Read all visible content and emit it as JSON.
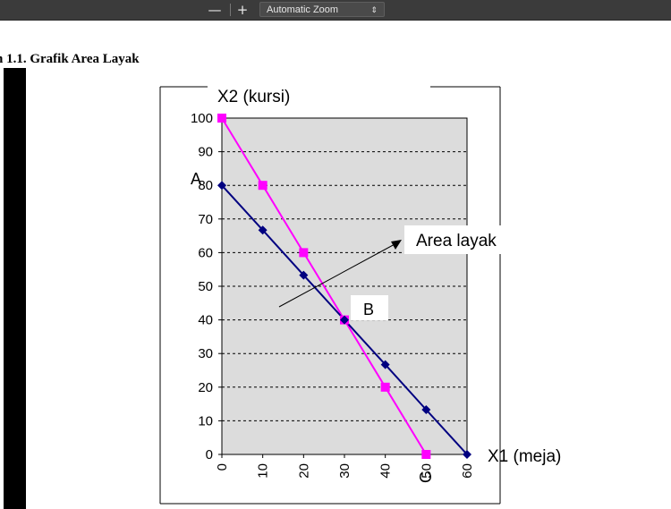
{
  "toolbar": {
    "zoom_out_label": "—",
    "zoom_in_label": "+",
    "zoom_select_value": "Automatic Zoom",
    "zoom_caret": "⇕"
  },
  "document": {
    "heading": "n 1.1. Grafik Area Layak"
  },
  "chart_data": {
    "type": "line",
    "ylabel": "X2 (kursi)",
    "xlabel": "X1 (meja)",
    "xlim": [
      0,
      60
    ],
    "ylim": [
      0,
      100
    ],
    "x_ticks": [
      "0",
      "10",
      "20",
      "30",
      "40",
      "50",
      "60"
    ],
    "y_ticks": [
      "0",
      "10",
      "20",
      "30",
      "40",
      "50",
      "60",
      "70",
      "80",
      "90",
      "100"
    ],
    "grid": "horizontal dashed",
    "plot_background": "#dcdcdc",
    "series": [
      {
        "color": "#ff00ff",
        "marker": "square",
        "points": [
          [
            0,
            100
          ],
          [
            10,
            80
          ],
          [
            20,
            60
          ],
          [
            30,
            40
          ],
          [
            40,
            20
          ],
          [
            50,
            0
          ]
        ]
      },
      {
        "color": "#000080",
        "marker": "diamond",
        "points": [
          [
            0,
            80
          ],
          [
            10,
            66.7
          ],
          [
            20,
            53.3
          ],
          [
            30,
            40
          ],
          [
            40,
            26.7
          ],
          [
            50,
            13.3
          ],
          [
            60,
            0
          ]
        ]
      }
    ],
    "point_labels": {
      "A": "A",
      "B": "B",
      "C": "C"
    },
    "annotation": "Area layak"
  }
}
